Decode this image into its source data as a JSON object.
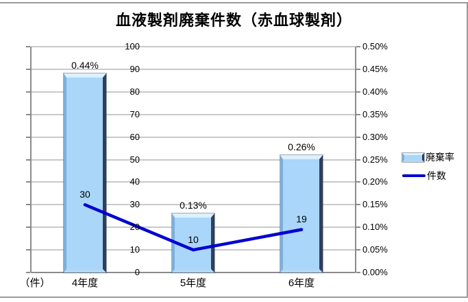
{
  "title": "血液製剤廃棄件数（赤血球製剤）",
  "colors": {
    "bar_fill": "#a9d6f9",
    "bar_edge_light": "#dcf0fe",
    "bar_edge_dark": "#2f3f5a",
    "line": "#0000d2",
    "gridline": "#c9c9c9",
    "axis": "#8a8a8a",
    "text": "#000000"
  },
  "legend": [
    {
      "label": "廃棄率",
      "marker": "bar"
    },
    {
      "label": "件数",
      "marker": "line"
    }
  ],
  "chart_data": {
    "type": "bar+line",
    "categories": [
      "4年度",
      "5年度",
      "6年度"
    ],
    "series": [
      {
        "name": "廃棄率",
        "type": "bar",
        "axis": "right",
        "values": [
          0.44,
          0.13,
          0.26
        ],
        "data_labels": [
          "0.44%",
          "0.13%",
          "0.26%"
        ]
      },
      {
        "name": "件数",
        "type": "line",
        "axis": "left",
        "values": [
          30,
          10,
          19
        ],
        "data_labels": [
          "30",
          "10",
          "19"
        ]
      }
    ],
    "left_axis": {
      "unit_label": "（件）",
      "min": 0,
      "max": 100,
      "step": 10,
      "ticks": [
        "100",
        "90",
        "80",
        "70",
        "60",
        "50",
        "40",
        "30",
        "20",
        "10",
        "0"
      ]
    },
    "right_axis": {
      "min": 0,
      "max": 0.5,
      "step": 0.05,
      "ticks": [
        "0.50%",
        "0.45%",
        "0.40%",
        "0.35%",
        "0.30%",
        "0.25%",
        "0.20%",
        "0.15%",
        "0.10%",
        "0.05%",
        "0.00%"
      ]
    },
    "grid": true,
    "legend_position": "right"
  }
}
